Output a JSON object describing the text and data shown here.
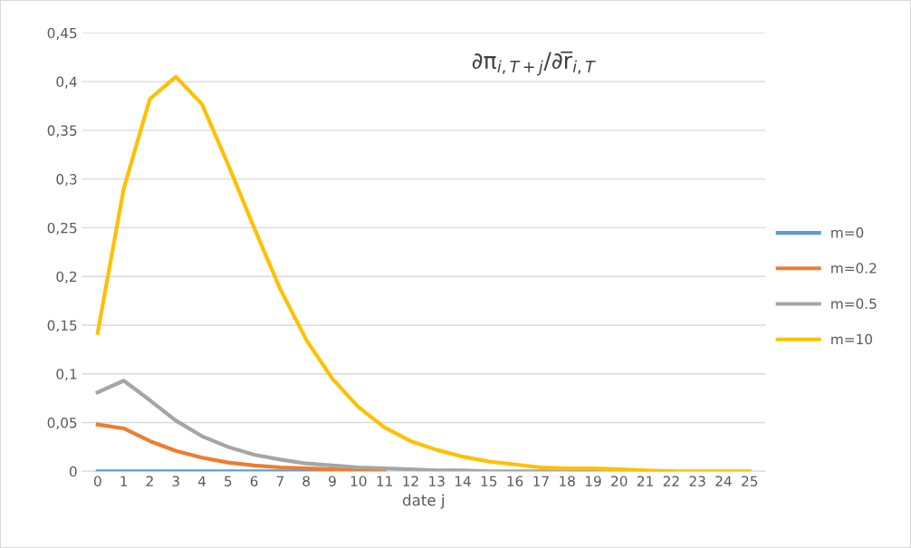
{
  "chart_data": {
    "type": "line",
    "title": "∂π$_{i,T+j}$/∂r̅$_{i,T}$",
    "xlabel": "date j",
    "categories": [
      "0",
      "1",
      "2",
      "3",
      "4",
      "5",
      "6",
      "7",
      "8",
      "9",
      "10",
      "11",
      "12",
      "13",
      "14",
      "15",
      "16",
      "17",
      "18",
      "19",
      "20",
      "21",
      "22",
      "23",
      "24",
      "25"
    ],
    "series": [
      {
        "name": "m=0",
        "color": "#5b9bd5",
        "values": [
          0,
          0,
          0,
          0,
          0,
          0,
          0,
          0,
          0,
          0,
          null,
          null,
          null,
          null,
          null,
          null,
          null,
          null,
          null,
          null,
          null,
          null,
          null,
          null,
          null,
          null
        ]
      },
      {
        "name": "m=0.2",
        "color": "#ed7d31",
        "values": [
          0.048,
          0.044,
          0.031,
          0.021,
          0.014,
          0.009,
          0.006,
          0.004,
          0.003,
          0.002,
          0.001,
          0.001,
          null,
          null,
          null,
          null,
          null,
          null,
          null,
          null,
          null,
          null,
          null,
          null,
          null,
          null
        ]
      },
      {
        "name": "m=0.5",
        "color": "#a5a5a5",
        "values": [
          0.081,
          0.093,
          0.073,
          0.052,
          0.036,
          0.025,
          0.017,
          0.012,
          0.008,
          0.006,
          0.004,
          0.003,
          0.002,
          0.001,
          0.001,
          0,
          0,
          0,
          0,
          0,
          0,
          0,
          0,
          null,
          null,
          null
        ]
      },
      {
        "name": "m=10",
        "color": "#ffc000",
        "values": [
          0.142,
          0.29,
          0.382,
          0.405,
          0.377,
          0.315,
          0.25,
          0.187,
          0.135,
          0.095,
          0.066,
          0.045,
          0.031,
          0.022,
          0.015,
          0.01,
          0.007,
          0.004,
          0.003,
          0.003,
          0.002,
          0.001,
          0,
          0,
          0,
          0
        ]
      }
    ],
    "ylim": [
      0,
      0.45
    ],
    "yticks": [
      0,
      {
        "value": 0.05,
        "label": "0,05"
      },
      {
        "value": 0.1,
        "label": "0,1"
      },
      {
        "value": 0.15,
        "label": "0,15"
      },
      {
        "value": 0.2,
        "label": "0,2"
      },
      {
        "value": 0.25,
        "label": "0,25"
      },
      {
        "value": 0.3,
        "label": "0,3"
      },
      {
        "value": 0.35,
        "label": "0,35"
      },
      {
        "value": 0.4,
        "label": "0,4"
      },
      {
        "value": 0.45,
        "label": "0,45"
      }
    ],
    "grid": "y",
    "legend": "right",
    "marker": "none",
    "line_style": "solid"
  }
}
